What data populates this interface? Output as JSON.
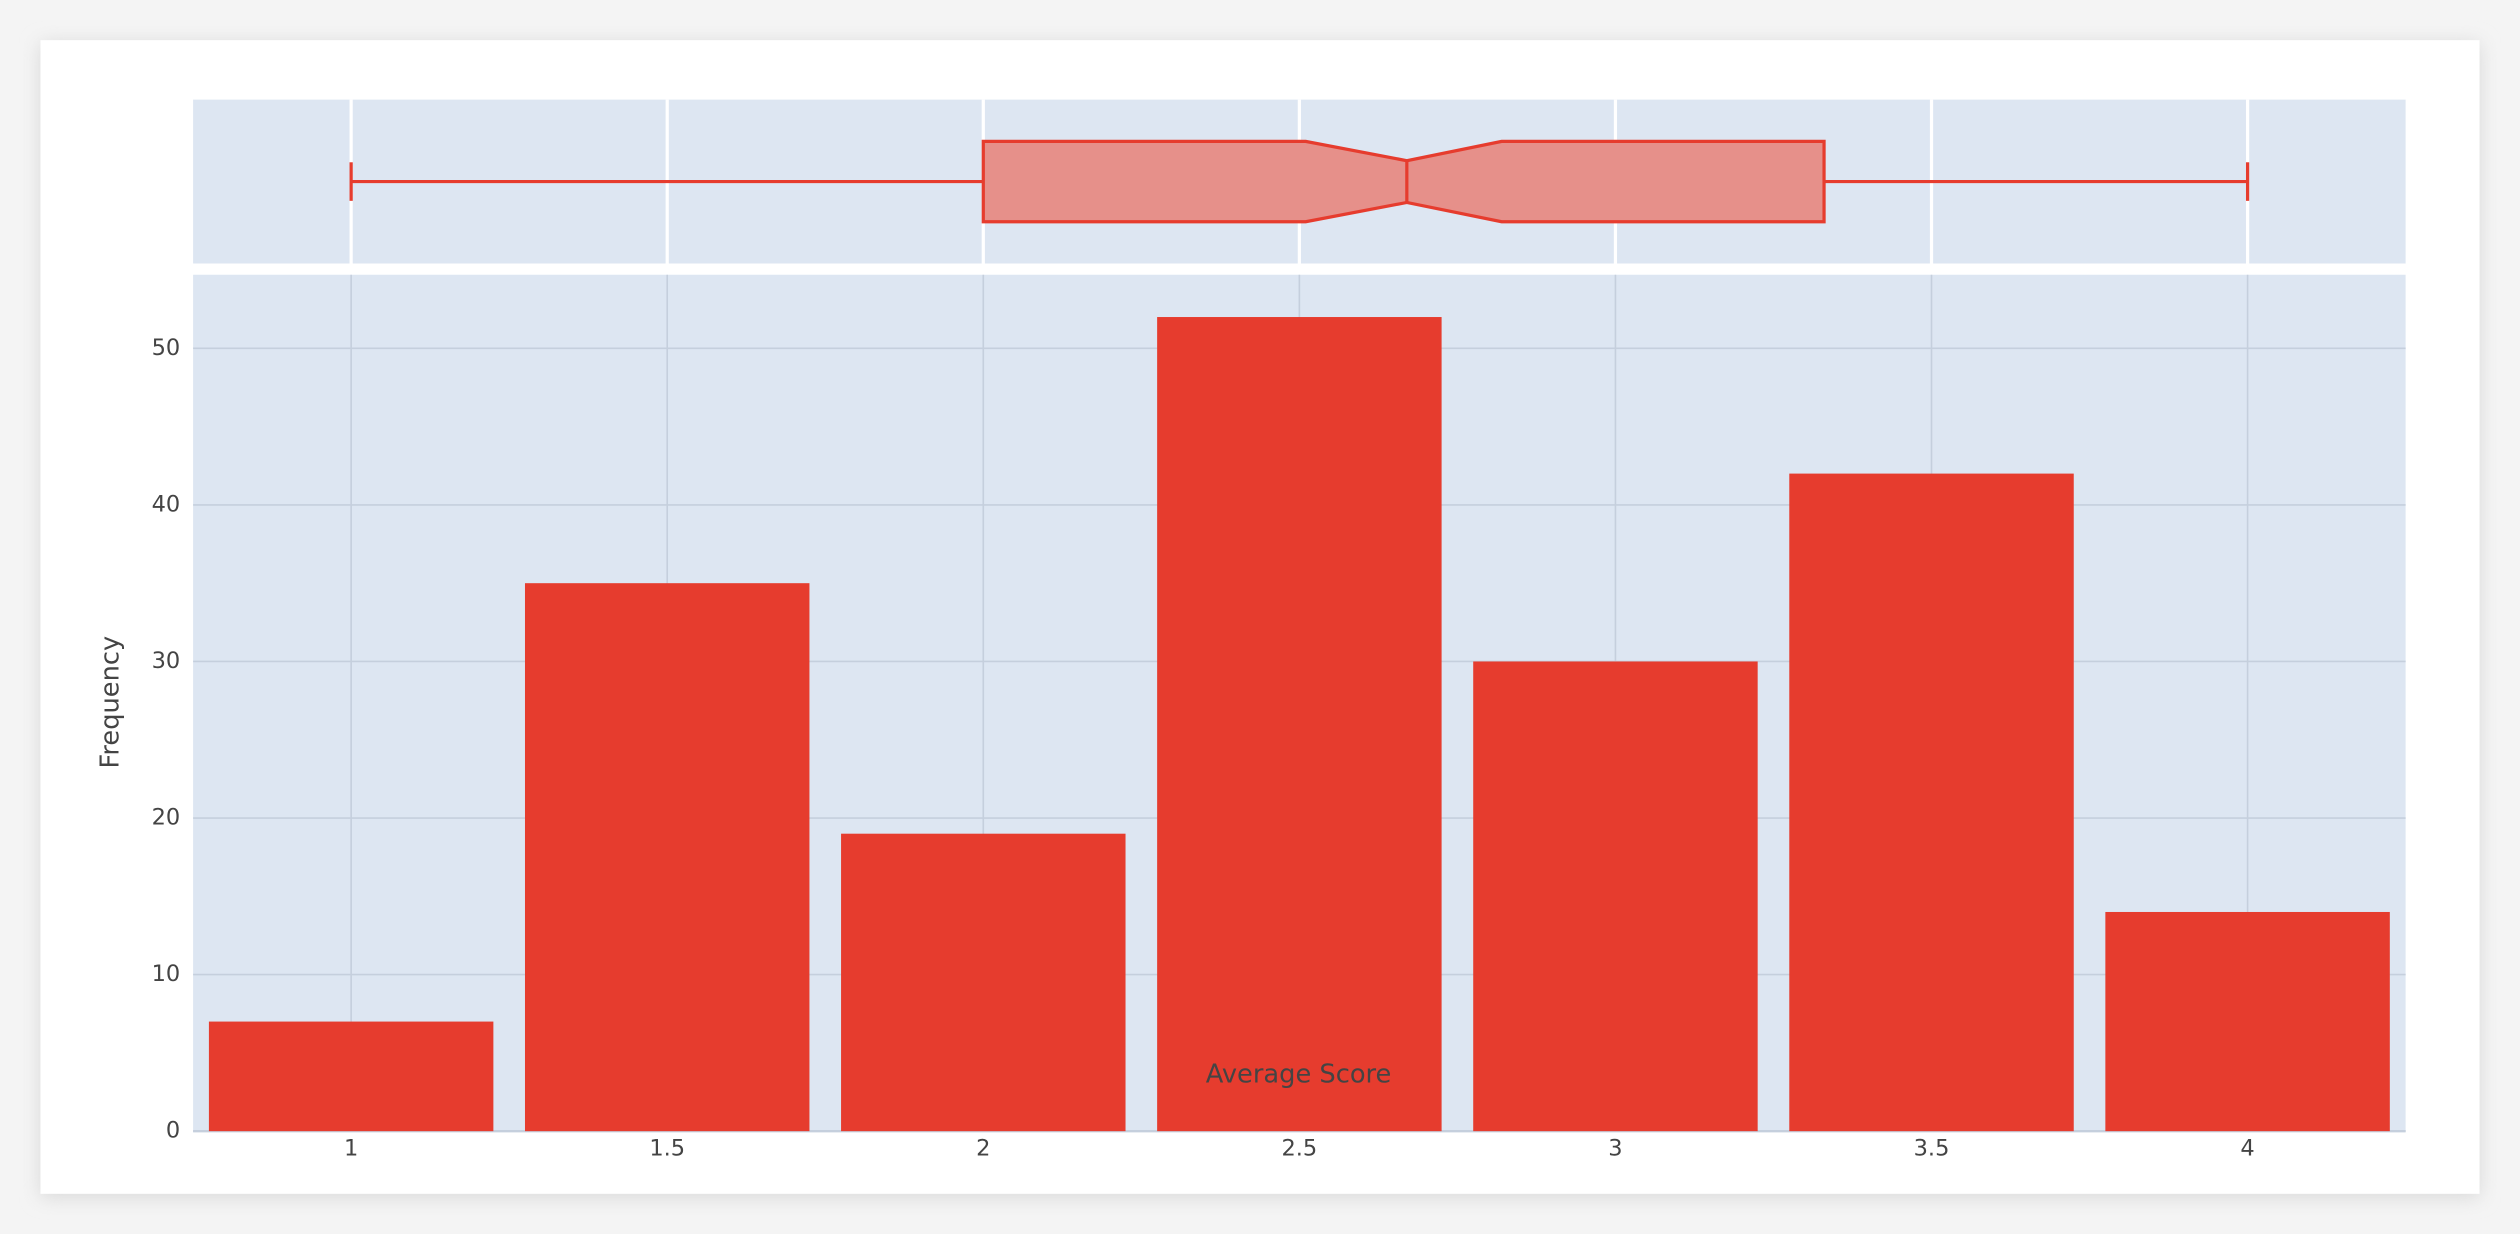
{
  "chart_data": {
    "type": "histogram",
    "bins": [
      0.75,
      1.25,
      1.75,
      2.25,
      2.75,
      3.25,
      3.75,
      4.25
    ],
    "values": [
      7,
      35,
      19,
      52,
      30,
      42,
      14
    ],
    "color": "#e63c2e",
    "xlim": [
      0.75,
      4.25
    ],
    "xticks": [
      1,
      1.5,
      2,
      2.5,
      3,
      3.5,
      4
    ],
    "ylim": [
      0,
      54.7
    ],
    "yticks": [
      0,
      10,
      20,
      30,
      40,
      50
    ],
    "xlabel": "Average Score",
    "ylabel": "Frequency",
    "grid": true,
    "box": {
      "min": 1,
      "q1": 2,
      "notch_low": 2.51,
      "median": 2.67,
      "notch_high": 2.82,
      "q3": 3.33,
      "max": 4,
      "fill": "#e6908a"
    }
  }
}
